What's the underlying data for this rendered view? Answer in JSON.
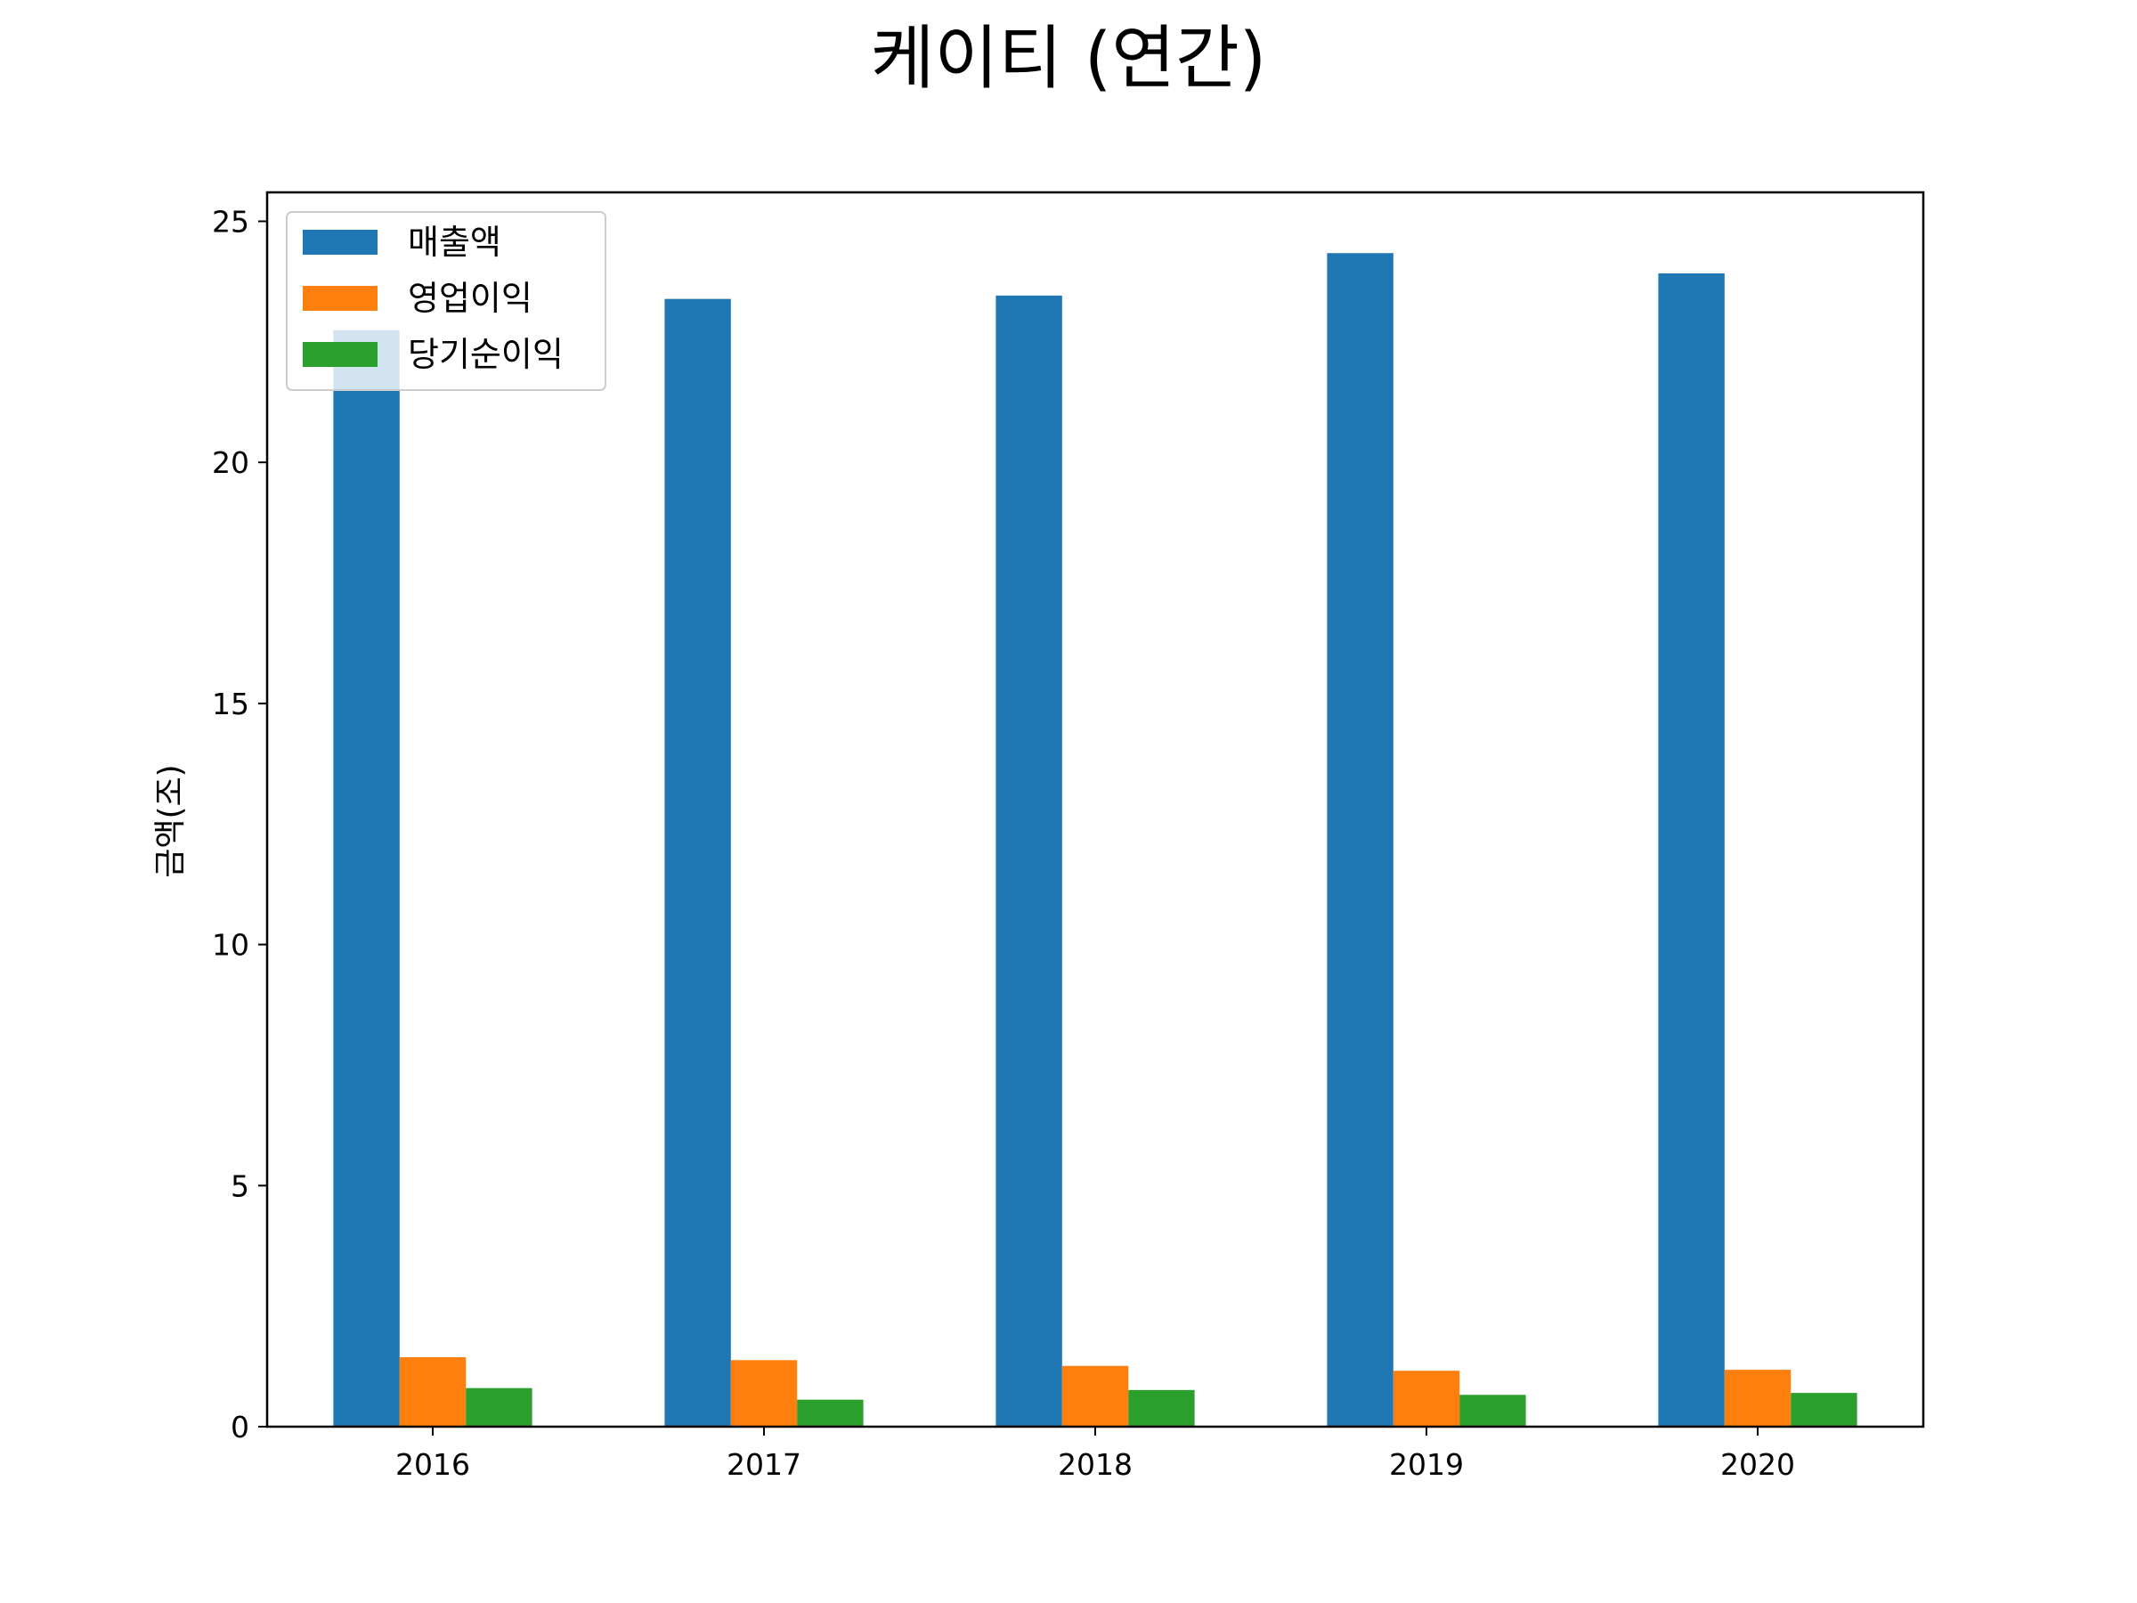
{
  "chart_data": {
    "type": "bar",
    "title": "케이티 (연간)",
    "xlabel": "",
    "ylabel": "금액(조)",
    "categories": [
      "2016",
      "2017",
      "2018",
      "2019",
      "2020"
    ],
    "series": [
      {
        "name": "매출액",
        "color": "#1f77b4",
        "values": [
          22.74,
          23.39,
          23.46,
          24.34,
          23.92
        ]
      },
      {
        "name": "영업이익",
        "color": "#ff7f0e",
        "values": [
          1.44,
          1.38,
          1.26,
          1.16,
          1.18
        ]
      },
      {
        "name": "당기순이익",
        "color": "#2ca02c",
        "values": [
          0.8,
          0.56,
          0.76,
          0.66,
          0.7
        ]
      }
    ],
    "ylim": [
      0,
      25.6
    ],
    "yticks": [
      "0",
      "5",
      "10",
      "15",
      "20",
      "25"
    ],
    "grid": false,
    "legend_position": "top-left"
  }
}
